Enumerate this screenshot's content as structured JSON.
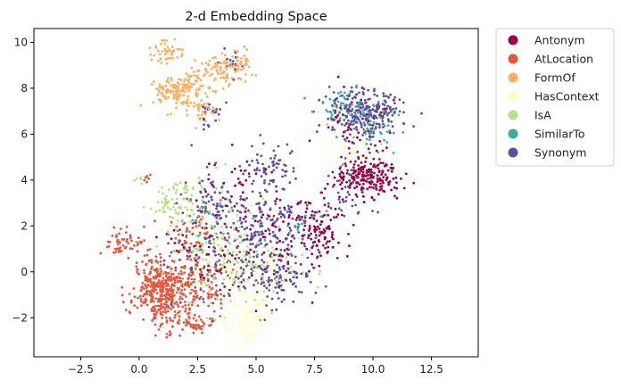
{
  "chart_data": {
    "type": "scatter",
    "title": "2-d Embedding Space",
    "xlabel": "",
    "ylabel": "",
    "xlim": [
      -4.5,
      14.5
    ],
    "ylim": [
      -3.7,
      10.6
    ],
    "xticks": [
      -2.5,
      0.0,
      2.5,
      5.0,
      7.5,
      10.0,
      12.5
    ],
    "xtick_labels": [
      "−2.5",
      "0.0",
      "2.5",
      "5.0",
      "7.5",
      "10.0",
      "12.5"
    ],
    "yticks": [
      -2,
      0,
      2,
      4,
      6,
      8,
      10
    ],
    "ytick_labels": [
      "−2",
      "0",
      "2",
      "4",
      "6",
      "8",
      "10"
    ],
    "grid": false,
    "legend_position": "outside-top-right",
    "series": [
      {
        "name": "Antonym",
        "color": "#9e0142",
        "clusters": [
          [
            9.8,
            4.2,
            0.7,
            0.45,
            200
          ],
          [
            7.8,
            1.8,
            0.45,
            0.7,
            110
          ],
          [
            9.3,
            6.4,
            0.8,
            0.6,
            60
          ],
          [
            5.2,
            1.2,
            1.4,
            1.2,
            90
          ],
          [
            2.5,
            1.0,
            0.8,
            0.8,
            40
          ],
          [
            4.5,
            3.8,
            0.8,
            0.6,
            30
          ]
        ]
      },
      {
        "name": "AtLocation",
        "color": "#e8553d",
        "clusters": [
          [
            0.8,
            -0.8,
            0.55,
            0.75,
            320
          ],
          [
            2.2,
            -0.6,
            0.8,
            0.7,
            170
          ],
          [
            -0.6,
            1.3,
            0.45,
            0.28,
            55
          ],
          [
            2.3,
            -2.3,
            0.5,
            0.18,
            45
          ],
          [
            2.3,
            1.6,
            0.7,
            0.6,
            50
          ],
          [
            0.3,
            4.0,
            0.1,
            0.1,
            6
          ]
        ]
      },
      {
        "name": "FormOf",
        "color": "#fdae61",
        "clusters": [
          [
            1.7,
            7.9,
            0.55,
            0.35,
            150
          ],
          [
            1.2,
            9.6,
            0.35,
            0.25,
            45
          ],
          [
            3.5,
            8.8,
            0.6,
            0.35,
            95
          ],
          [
            2.7,
            7.0,
            0.3,
            0.35,
            35
          ],
          [
            4.4,
            9.2,
            0.2,
            0.25,
            20
          ]
        ]
      },
      {
        "name": "HasContext",
        "color": "#ffffbf",
        "clusters": [
          [
            4.6,
            -2.1,
            0.5,
            0.5,
            110
          ],
          [
            4.3,
            0.0,
            1.3,
            0.8,
            140
          ],
          [
            9.0,
            5.4,
            0.7,
            0.5,
            40
          ],
          [
            3.5,
            1.5,
            0.8,
            0.7,
            50
          ]
        ]
      },
      {
        "name": "IsA",
        "color": "#b8e186",
        "clusters": [
          [
            1.3,
            2.9,
            0.5,
            0.4,
            55
          ],
          [
            2.8,
            0.9,
            1.2,
            1.2,
            110
          ],
          [
            5.0,
            0.4,
            1.3,
            0.9,
            80
          ],
          [
            0.0,
            4.0,
            0.1,
            0.1,
            6
          ],
          [
            2.0,
            3.6,
            0.4,
            0.3,
            20
          ]
        ]
      },
      {
        "name": "SimilarTo",
        "color": "#3fa9a3",
        "clusters": [
          [
            8.8,
            7.2,
            0.6,
            0.4,
            60
          ],
          [
            10.0,
            6.3,
            0.5,
            0.5,
            55
          ],
          [
            4.3,
            1.8,
            0.8,
            0.6,
            20
          ],
          [
            3.0,
            2.5,
            0.6,
            0.5,
            15
          ],
          [
            7.1,
            2.0,
            0.5,
            0.4,
            15
          ]
        ]
      },
      {
        "name": "Synonym",
        "color": "#5e4fa2",
        "clusters": [
          [
            9.7,
            6.9,
            0.8,
            0.5,
            210
          ],
          [
            5.4,
            1.7,
            1.0,
            0.9,
            170
          ],
          [
            5.7,
            -0.2,
            0.9,
            0.6,
            110
          ],
          [
            3.3,
            2.8,
            0.7,
            0.8,
            90
          ],
          [
            5.6,
            4.5,
            0.6,
            0.5,
            70
          ],
          [
            2.8,
            0.2,
            1.0,
            0.8,
            80
          ],
          [
            3.1,
            7.0,
            0.25,
            0.3,
            20
          ],
          [
            4.0,
            9.1,
            0.2,
            0.25,
            15
          ],
          [
            8.9,
            3.5,
            0.5,
            0.6,
            45
          ]
        ]
      }
    ]
  }
}
